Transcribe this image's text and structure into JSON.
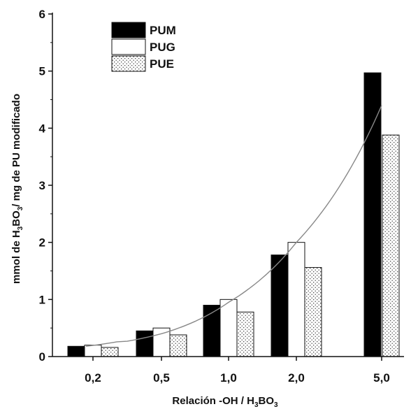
{
  "chart_data": {
    "type": "bar",
    "categories": [
      "0,2",
      "0,5",
      "1,0",
      "2,0",
      "5,0"
    ],
    "series": [
      {
        "name": "PUM",
        "values": [
          0.18,
          0.45,
          0.9,
          1.78,
          4.97
        ],
        "fill": "solid"
      },
      {
        "name": "PUG",
        "values": [
          0.2,
          0.5,
          1.0,
          2.0,
          0
        ],
        "fill": "white"
      },
      {
        "name": "PUE",
        "values": [
          0.16,
          0.38,
          0.78,
          1.56,
          3.88
        ],
        "fill": "dotted"
      }
    ],
    "trend_line": {
      "type": "exponential",
      "x_index_from": 0,
      "x_index_to": 4,
      "points": [
        [
          0,
          0.18
        ],
        [
          1,
          0.4
        ],
        [
          2,
          0.95
        ],
        [
          3,
          2.0
        ],
        [
          4,
          4.4
        ]
      ]
    },
    "ylim": [
      0,
      6
    ],
    "yticks": [
      "0",
      "1",
      "2",
      "3",
      "4",
      "5",
      "6"
    ],
    "ylabel": {
      "pre": "mmol de H",
      "sub": "3",
      "post": "BO",
      "sub2": "3",
      "post2": "/ mg de PU modificado"
    },
    "xlabel": {
      "pre": "Relación -OH / H",
      "sub": "3",
      "post": "BO",
      "sub2": "3"
    },
    "legend_position": "top-left",
    "colors": {
      "solid": "#000000",
      "white": "#ffffff",
      "outline": "#111111",
      "dot": "#333333",
      "trend": "#888888"
    }
  }
}
